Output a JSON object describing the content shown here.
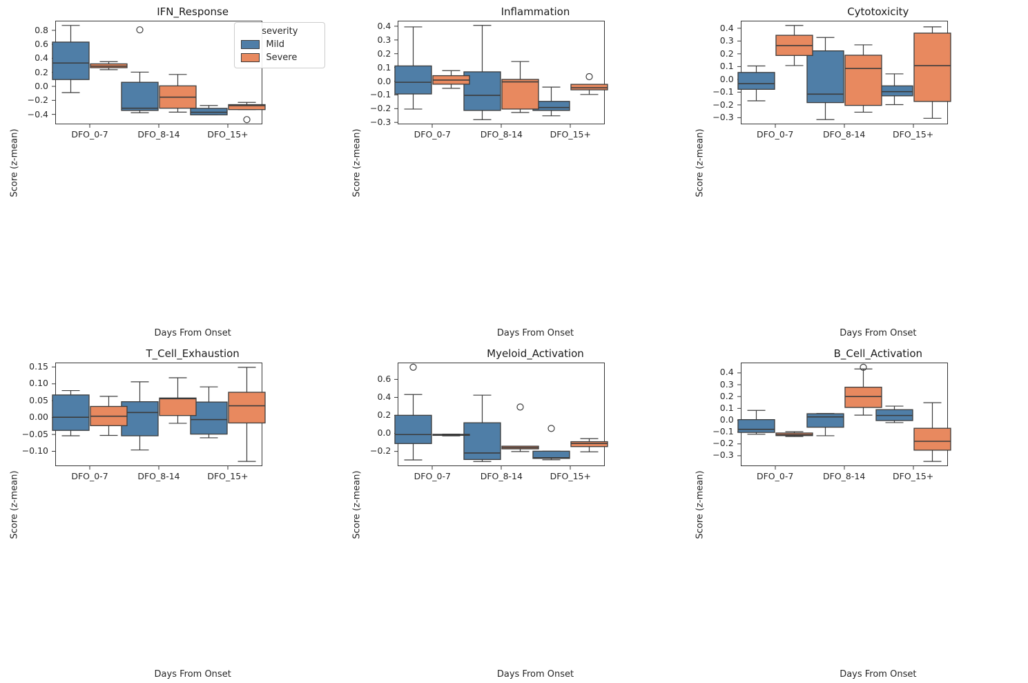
{
  "figure": {
    "background": "#ffffff",
    "edge_color": "#3b3b3b",
    "spine_color": "#333333",
    "series_colors": {
      "Mild": "#4f7ea7",
      "Severe": "#e8895f"
    }
  },
  "legend": {
    "title": "severity",
    "entries": [
      {
        "label": "Mild",
        "color": "#4f7ea7"
      },
      {
        "label": "Severe",
        "color": "#e8895f"
      }
    ]
  },
  "chart_data": [
    {
      "type": "box",
      "title": "IFN_Response",
      "xlabel": "Days From Onset",
      "ylabel": "Score (z-mean)",
      "categories": [
        "DFO_0-7",
        "DFO_8-14",
        "DFO_15+"
      ],
      "ylim": [
        -0.542,
        0.937
      ],
      "ytick_values": [
        0.8,
        0.6,
        0.4,
        0.2,
        0.0,
        -0.2,
        -0.4
      ],
      "ytick_labels": [
        "0.8",
        "0.6",
        "0.4",
        "0.2",
        "0.0",
        "−0.2",
        "−0.4"
      ],
      "series": [
        {
          "name": "Mild",
          "boxes": [
            {
              "whislo": -0.09,
              "q1": 0.097,
              "med": 0.333,
              "q3": 0.632,
              "whishi": 0.87,
              "outliers": []
            },
            {
              "whislo": -0.377,
              "q1": -0.344,
              "med": -0.312,
              "q3": 0.058,
              "whishi": 0.203,
              "outliers": [
                0.807
              ]
            },
            {
              "whislo": -0.407,
              "q1": -0.407,
              "med": -0.37,
              "q3": -0.314,
              "whishi": -0.273,
              "outliers": []
            }
          ]
        },
        {
          "name": "Severe",
          "boxes": [
            {
              "whislo": 0.238,
              "q1": 0.266,
              "med": 0.288,
              "q3": 0.321,
              "whishi": 0.353,
              "outliers": []
            },
            {
              "whislo": -0.368,
              "q1": -0.312,
              "med": -0.154,
              "q3": 0.007,
              "whishi": 0.17,
              "outliers": []
            },
            {
              "whislo": -0.332,
              "q1": -0.332,
              "med": -0.275,
              "q3": -0.261,
              "whishi": -0.229,
              "outliers": [
                -0.475
              ]
            }
          ]
        }
      ]
    },
    {
      "type": "box",
      "title": "Inflammation",
      "xlabel": "Days From Onset",
      "ylabel": "Score (z-mean)",
      "categories": [
        "DFO_0-7",
        "DFO_8-14",
        "DFO_15+"
      ],
      "ylim": [
        -0.314,
        0.44
      ],
      "ytick_values": [
        0.4,
        0.3,
        0.2,
        0.1,
        0.0,
        -0.1,
        -0.2,
        -0.3
      ],
      "ytick_labels": [
        "0.4",
        "0.3",
        "0.2",
        "0.1",
        "0.0",
        "−0.1",
        "−0.2",
        "−0.3"
      ],
      "series": [
        {
          "name": "Mild",
          "boxes": [
            {
              "whislo": -0.203,
              "q1": -0.093,
              "med": -0.008,
              "q3": 0.111,
              "whishi": 0.395,
              "outliers": []
            },
            {
              "whislo": -0.28,
              "q1": -0.213,
              "med": -0.103,
              "q3": 0.068,
              "whishi": 0.406,
              "outliers": []
            },
            {
              "whislo": -0.252,
              "q1": -0.213,
              "med": -0.192,
              "q3": -0.147,
              "whishi": -0.043,
              "outliers": []
            }
          ]
        },
        {
          "name": "Severe",
          "boxes": [
            {
              "whislo": -0.052,
              "q1": -0.022,
              "med": 0.008,
              "q3": 0.04,
              "whishi": 0.077,
              "outliers": []
            },
            {
              "whislo": -0.228,
              "q1": -0.203,
              "med": -0.005,
              "q3": 0.013,
              "whishi": 0.143,
              "outliers": []
            },
            {
              "whislo": -0.097,
              "q1": -0.063,
              "med": -0.048,
              "q3": -0.023,
              "whishi": -0.023,
              "outliers": [
                0.033
              ]
            }
          ]
        }
      ]
    },
    {
      "type": "box",
      "title": "Cytotoxicity",
      "xlabel": "Days From Onset",
      "ylabel": "Score (z-mean)",
      "categories": [
        "DFO_0-7",
        "DFO_8-14",
        "DFO_15+"
      ],
      "ylim": [
        -0.352,
        0.459
      ],
      "ytick_values": [
        0.4,
        0.3,
        0.2,
        0.1,
        0.0,
        -0.1,
        -0.2,
        -0.3
      ],
      "ytick_labels": [
        "0.4",
        "0.3",
        "0.2",
        "0.1",
        "0.0",
        "−0.1",
        "−0.2",
        "−0.3"
      ],
      "series": [
        {
          "name": "Mild",
          "boxes": [
            {
              "whislo": -0.168,
              "q1": -0.078,
              "med": -0.034,
              "q3": 0.054,
              "whishi": 0.105,
              "outliers": []
            },
            {
              "whislo": -0.315,
              "q1": -0.182,
              "med": -0.116,
              "q3": 0.223,
              "whishi": 0.328,
              "outliers": []
            },
            {
              "whislo": -0.198,
              "q1": -0.129,
              "med": -0.096,
              "q3": -0.051,
              "whishi": 0.043,
              "outliers": []
            }
          ]
        },
        {
          "name": "Severe",
          "boxes": [
            {
              "whislo": 0.108,
              "q1": 0.187,
              "med": 0.264,
              "q3": 0.345,
              "whishi": 0.422,
              "outliers": []
            },
            {
              "whislo": -0.257,
              "q1": -0.204,
              "med": 0.085,
              "q3": 0.189,
              "whishi": 0.27,
              "outliers": []
            },
            {
              "whislo": -0.305,
              "q1": -0.173,
              "med": 0.107,
              "q3": 0.362,
              "whishi": 0.411,
              "outliers": []
            }
          ]
        }
      ]
    },
    {
      "type": "box",
      "title": "T_Cell_Exhaustion",
      "xlabel": "Days From Onset",
      "ylabel": "Score (z-mean)",
      "categories": [
        "DFO_0-7",
        "DFO_8-14",
        "DFO_15+"
      ],
      "ylim": [
        -0.144,
        0.163
      ],
      "ytick_values": [
        0.15,
        0.1,
        0.05,
        0.0,
        -0.05,
        -0.1
      ],
      "ytick_labels": [
        "0.15",
        "0.10",
        "0.05",
        "0.00",
        "−0.05",
        "−0.10"
      ],
      "series": [
        {
          "name": "Mild",
          "boxes": [
            {
              "whislo": -0.054,
              "q1": -0.038,
              "med": 0.001,
              "q3": 0.067,
              "whishi": 0.08,
              "outliers": []
            },
            {
              "whislo": -0.096,
              "q1": -0.054,
              "med": 0.015,
              "q3": 0.047,
              "whishi": 0.106,
              "outliers": []
            },
            {
              "whislo": -0.06,
              "q1": -0.049,
              "med": -0.006,
              "q3": 0.046,
              "whishi": 0.091,
              "outliers": []
            }
          ]
        },
        {
          "name": "Severe",
          "boxes": [
            {
              "whislo": -0.053,
              "q1": -0.024,
              "med": 0.004,
              "q3": 0.033,
              "whishi": 0.063,
              "outliers": []
            },
            {
              "whislo": -0.017,
              "q1": 0.006,
              "med": 0.056,
              "q3": 0.058,
              "whishi": 0.118,
              "outliers": []
            },
            {
              "whislo": -0.13,
              "q1": -0.016,
              "med": 0.035,
              "q3": 0.075,
              "whishi": 0.149,
              "outliers": []
            }
          ]
        }
      ]
    },
    {
      "type": "box",
      "title": "Myeloid_Activation",
      "xlabel": "Days From Onset",
      "ylabel": "Score (z-mean)",
      "categories": [
        "DFO_0-7",
        "DFO_8-14",
        "DFO_15+"
      ],
      "ylim": [
        -0.364,
        0.787
      ],
      "ytick_values": [
        0.6,
        0.4,
        0.2,
        0.0,
        -0.2
      ],
      "ytick_labels": [
        "0.6",
        "0.4",
        "0.2",
        "0.0",
        "−0.2"
      ],
      "series": [
        {
          "name": "Mild",
          "boxes": [
            {
              "whislo": -0.295,
              "q1": -0.113,
              "med": -0.013,
              "q3": 0.201,
              "whishi": 0.432,
              "outliers": [
                0.735
              ]
            },
            {
              "whislo": -0.312,
              "q1": -0.29,
              "med": -0.218,
              "q3": 0.118,
              "whishi": 0.425,
              "outliers": []
            },
            {
              "whislo": -0.293,
              "q1": -0.278,
              "med": -0.27,
              "q3": -0.198,
              "whishi": -0.198,
              "outliers": [
                0.055
              ]
            }
          ]
        },
        {
          "name": "Severe",
          "boxes": [
            {
              "whislo": -0.028,
              "q1": -0.022,
              "med": -0.015,
              "q3": -0.01,
              "whishi": -0.008,
              "outliers": []
            },
            {
              "whislo": -0.202,
              "q1": -0.172,
              "med": -0.158,
              "q3": -0.142,
              "whishi": -0.142,
              "outliers": [
                0.293
              ]
            },
            {
              "whislo": -0.205,
              "q1": -0.147,
              "med": -0.112,
              "q3": -0.092,
              "whishi": -0.058,
              "outliers": []
            }
          ]
        }
      ]
    },
    {
      "type": "box",
      "title": "B_Cell_Activation",
      "xlabel": "Days From Onset",
      "ylabel": "Score (z-mean)",
      "categories": [
        "DFO_0-7",
        "DFO_8-14",
        "DFO_15+"
      ],
      "ylim": [
        -0.388,
        0.487
      ],
      "ytick_values": [
        0.4,
        0.3,
        0.2,
        0.1,
        0.0,
        -0.1,
        -0.2,
        -0.3
      ],
      "ytick_labels": [
        "0.4",
        "0.3",
        "0.2",
        "0.1",
        "0.0",
        "−0.1",
        "−0.2",
        "−0.3"
      ],
      "series": [
        {
          "name": "Mild",
          "boxes": [
            {
              "whislo": -0.118,
              "q1": -0.103,
              "med": -0.077,
              "q3": 0.005,
              "whishi": 0.083,
              "outliers": []
            },
            {
              "whislo": -0.131,
              "q1": -0.059,
              "med": 0.028,
              "q3": 0.055,
              "whishi": 0.057,
              "outliers": []
            },
            {
              "whislo": -0.02,
              "q1": -0.003,
              "med": 0.04,
              "q3": 0.089,
              "whishi": 0.119,
              "outliers": []
            }
          ]
        },
        {
          "name": "Severe",
          "boxes": [
            {
              "whislo": -0.137,
              "q1": -0.13,
              "med": -0.122,
              "q3": -0.108,
              "whishi": -0.097,
              "outliers": []
            },
            {
              "whislo": 0.043,
              "q1": 0.108,
              "med": 0.2,
              "q3": 0.279,
              "whishi": 0.433,
              "outliers": [
                0.447
              ]
            },
            {
              "whislo": -0.348,
              "q1": -0.253,
              "med": -0.178,
              "q3": -0.068,
              "whishi": 0.148,
              "outliers": []
            }
          ]
        }
      ]
    }
  ]
}
